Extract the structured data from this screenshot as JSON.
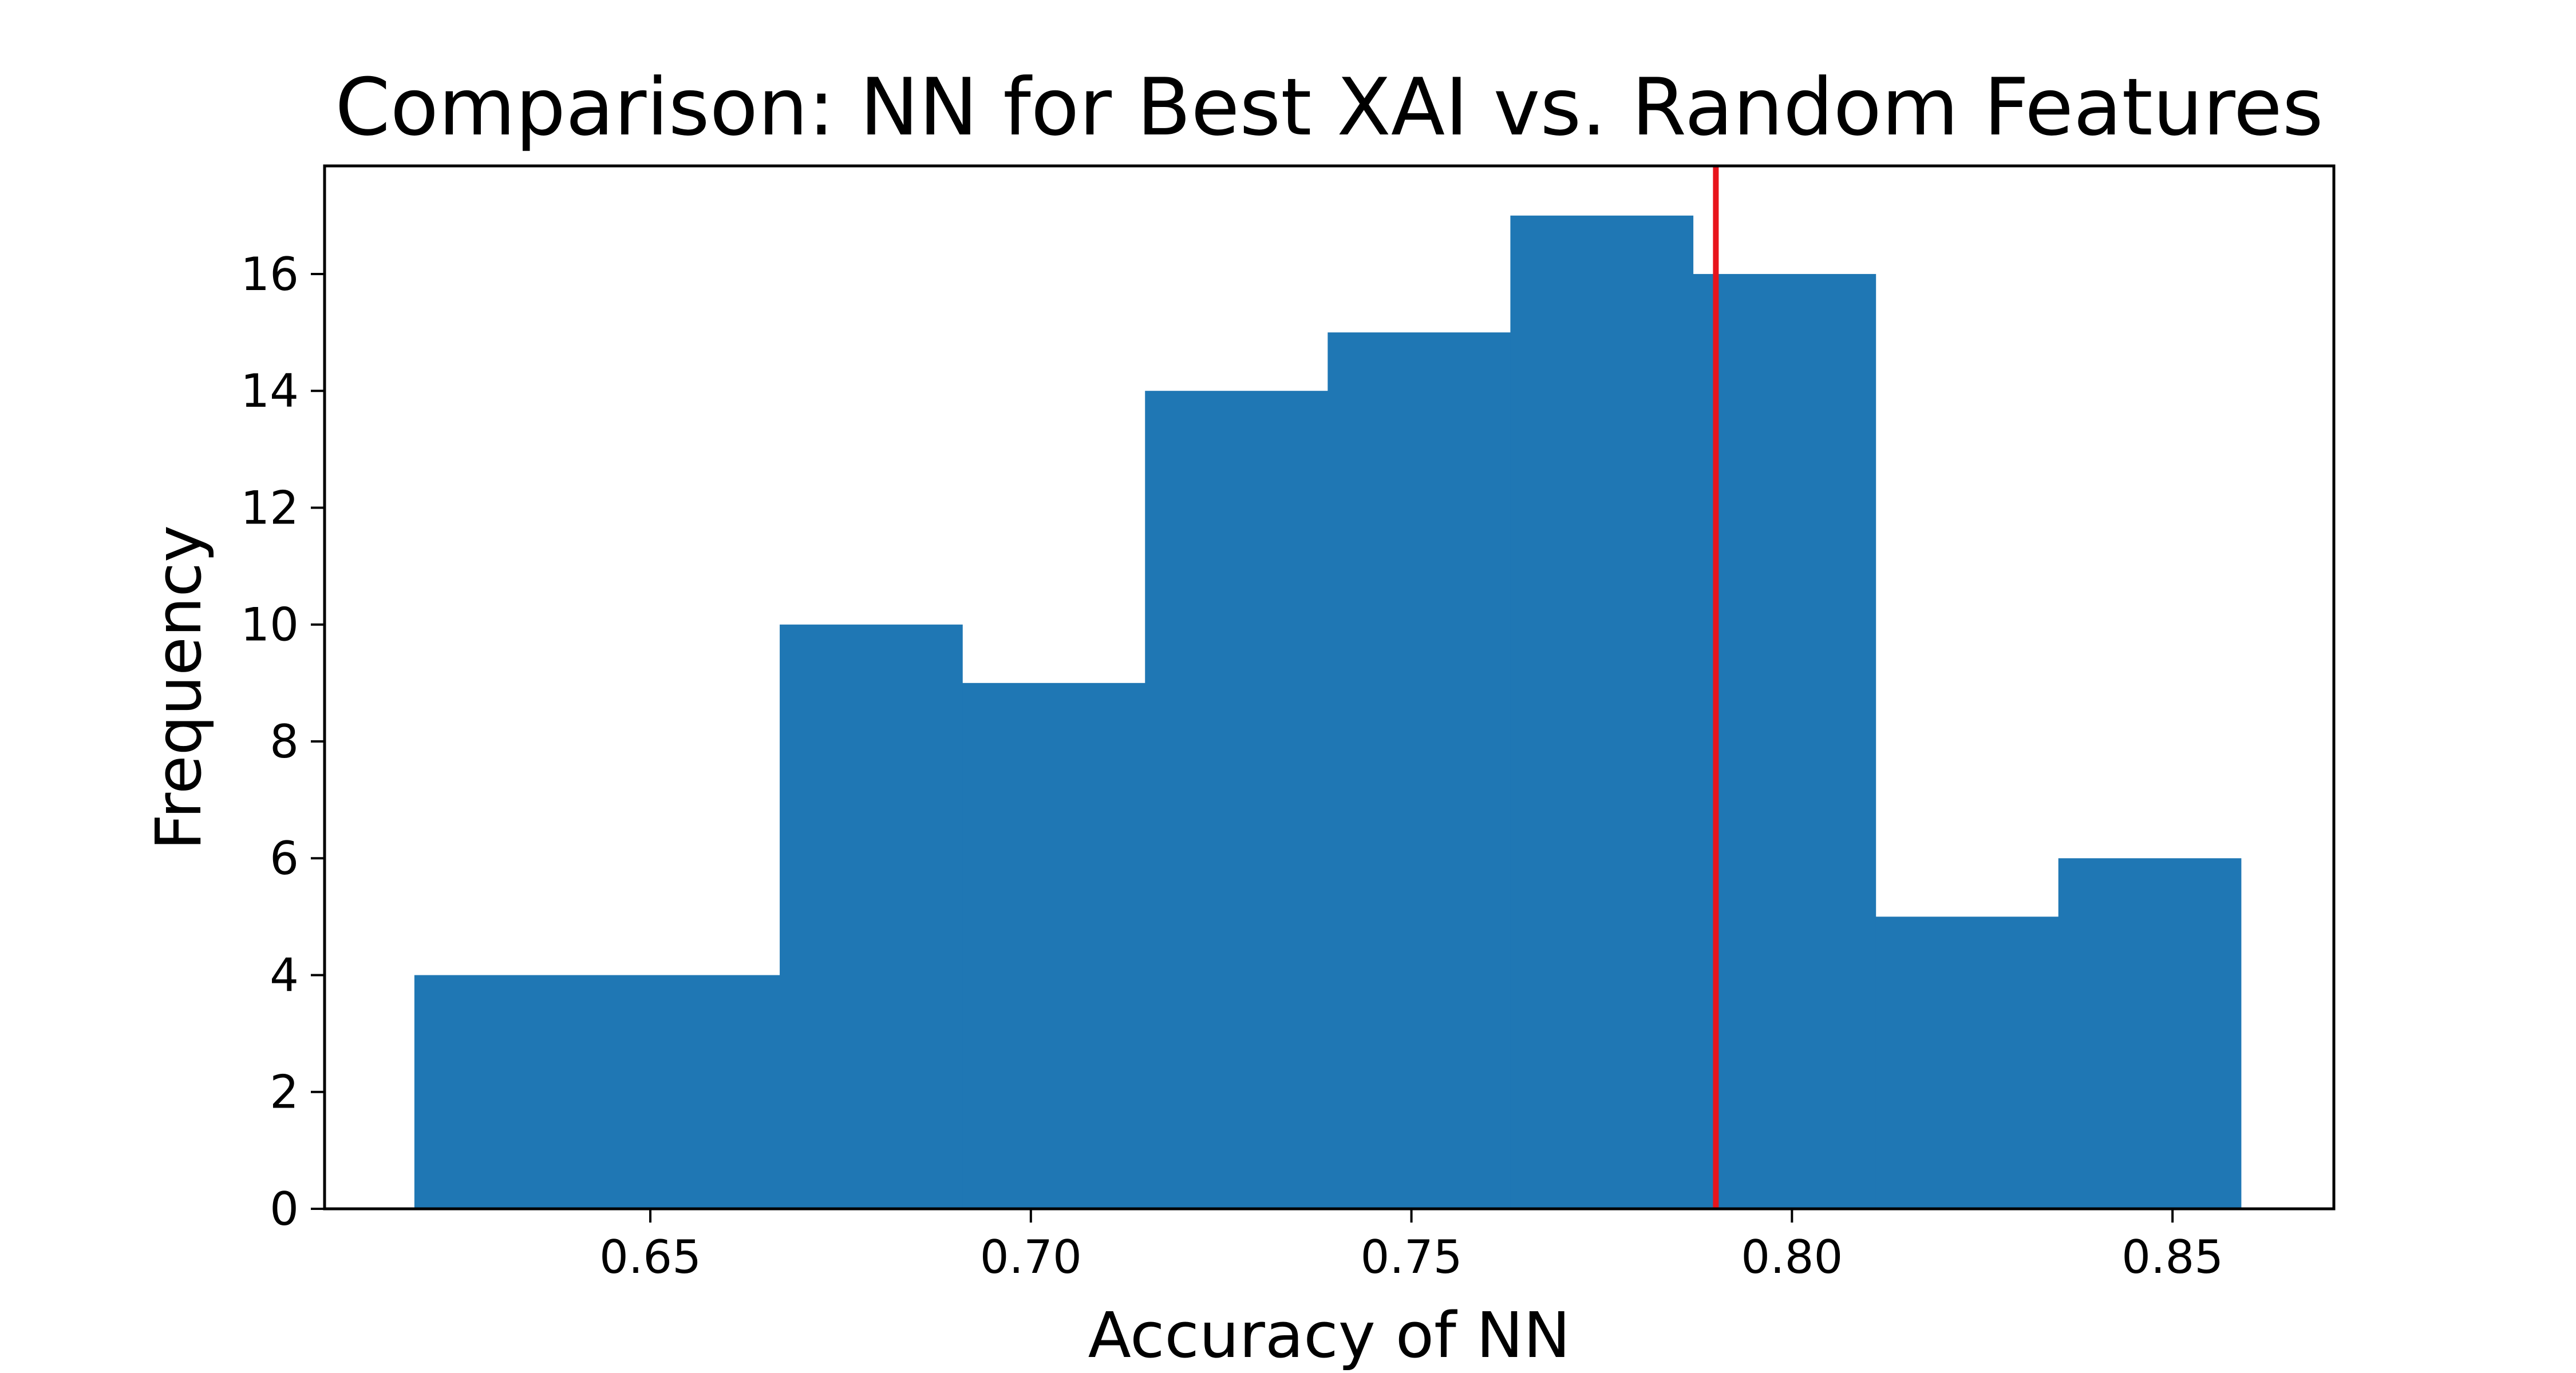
{
  "chart_data": {
    "type": "bar",
    "title": "Comparison: NN for Best XAI vs. Random Features",
    "xlabel": "Accuracy of NN",
    "ylabel": "Frequency",
    "xlim": [
      0.6072,
      0.8712
    ],
    "ylim": [
      0,
      17.85
    ],
    "xticks": [
      0.65,
      0.7,
      0.75,
      0.8,
      0.85
    ],
    "xtick_labels": [
      "0.65",
      "0.70",
      "0.75",
      "0.80",
      "0.85"
    ],
    "yticks": [
      0,
      2,
      4,
      6,
      8,
      10,
      12,
      14,
      16
    ],
    "ytick_labels": [
      "0",
      "2",
      "4",
      "6",
      "8",
      "10",
      "12",
      "14",
      "16"
    ],
    "bin_edges": [
      0.619,
      0.643,
      0.667,
      0.691,
      0.715,
      0.739,
      0.763,
      0.787,
      0.811,
      0.835,
      0.859
    ],
    "values": [
      4,
      4,
      10,
      9,
      14,
      15,
      17,
      16,
      5,
      6
    ],
    "reference_line": {
      "x": 0.79
    },
    "grid": false,
    "colors": {
      "bars": "#1f77b4",
      "reference_line": "#e8141c",
      "axes": "#000000"
    }
  }
}
